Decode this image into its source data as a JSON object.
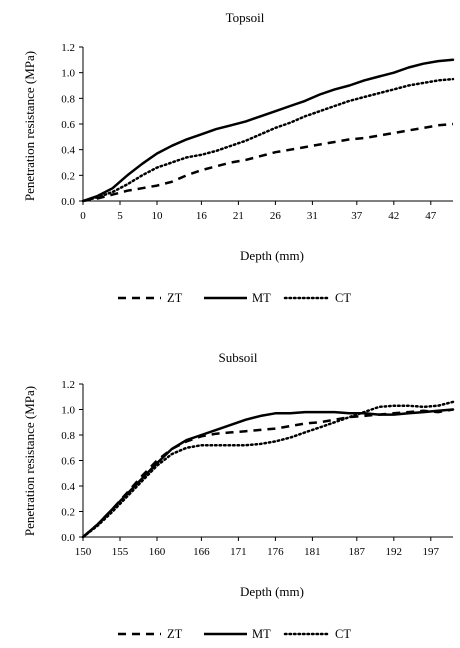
{
  "chart_data": [
    {
      "type": "line",
      "title": "Topsoil",
      "xlabel": "Depth (mm)",
      "ylabel": "Penetration resistance (MPa)",
      "xlim": [
        0,
        50
      ],
      "ylim": [
        0,
        1.2
      ],
      "x_ticks": [
        0,
        5,
        10,
        16,
        21,
        26,
        31,
        37,
        42,
        47
      ],
      "y_ticks": [
        "0.0",
        "0.2",
        "0.4",
        "0.6",
        "0.8",
        "1.0",
        "1.2"
      ],
      "grid": false,
      "legend_position": "bottom",
      "series": [
        {
          "name": "ZT",
          "style": "dashed",
          "x": [
            0,
            2,
            4,
            6,
            8,
            10,
            12,
            14,
            16,
            18,
            20,
            22,
            24,
            26,
            28,
            30,
            32,
            34,
            36,
            38,
            40,
            42,
            44,
            46,
            48,
            50
          ],
          "y": [
            0.0,
            0.02,
            0.05,
            0.08,
            0.1,
            0.12,
            0.15,
            0.2,
            0.24,
            0.27,
            0.3,
            0.32,
            0.35,
            0.38,
            0.4,
            0.42,
            0.44,
            0.46,
            0.48,
            0.49,
            0.51,
            0.53,
            0.55,
            0.57,
            0.59,
            0.6
          ]
        },
        {
          "name": "MT",
          "style": "solid",
          "x": [
            0,
            2,
            4,
            6,
            8,
            10,
            12,
            14,
            16,
            18,
            20,
            22,
            24,
            26,
            28,
            30,
            32,
            34,
            36,
            38,
            40,
            42,
            44,
            46,
            48,
            50
          ],
          "y": [
            0.0,
            0.04,
            0.1,
            0.2,
            0.29,
            0.37,
            0.43,
            0.48,
            0.52,
            0.56,
            0.59,
            0.62,
            0.66,
            0.7,
            0.74,
            0.78,
            0.83,
            0.87,
            0.9,
            0.94,
            0.97,
            1.0,
            1.04,
            1.07,
            1.09,
            1.1
          ]
        },
        {
          "name": "CT",
          "style": "dotted",
          "x": [
            0,
            2,
            4,
            6,
            8,
            10,
            12,
            14,
            16,
            18,
            20,
            22,
            24,
            26,
            28,
            30,
            32,
            34,
            36,
            38,
            40,
            42,
            44,
            46,
            48,
            50
          ],
          "y": [
            0.0,
            0.03,
            0.07,
            0.13,
            0.2,
            0.26,
            0.3,
            0.34,
            0.36,
            0.39,
            0.43,
            0.47,
            0.52,
            0.57,
            0.61,
            0.66,
            0.7,
            0.74,
            0.78,
            0.81,
            0.84,
            0.87,
            0.9,
            0.92,
            0.94,
            0.95
          ]
        }
      ]
    },
    {
      "type": "line",
      "title": "Subsoil",
      "xlabel": "Depth (mm)",
      "ylabel": "Penetration resistance (MPa)",
      "xlim": [
        150,
        200
      ],
      "ylim": [
        0,
        1.2
      ],
      "x_ticks": [
        150,
        155,
        160,
        166,
        171,
        176,
        181,
        187,
        192,
        197
      ],
      "y_ticks": [
        "0.0",
        "0.2",
        "0.4",
        "0.6",
        "0.8",
        "1.0",
        "1.2"
      ],
      "grid": false,
      "legend_position": "bottom",
      "series": [
        {
          "name": "ZT",
          "style": "dashed",
          "x": [
            150,
            152,
            154,
            156,
            158,
            160,
            162,
            164,
            166,
            168,
            170,
            172,
            174,
            176,
            178,
            180,
            182,
            184,
            186,
            188,
            190,
            192,
            194,
            196,
            198,
            200
          ],
          "y": [
            0.0,
            0.1,
            0.22,
            0.35,
            0.48,
            0.6,
            0.69,
            0.75,
            0.79,
            0.81,
            0.82,
            0.83,
            0.84,
            0.85,
            0.87,
            0.89,
            0.9,
            0.92,
            0.94,
            0.95,
            0.96,
            0.97,
            0.98,
            0.99,
            0.98,
            1.0
          ]
        },
        {
          "name": "MT",
          "style": "solid",
          "x": [
            150,
            152,
            154,
            156,
            158,
            160,
            162,
            164,
            166,
            168,
            170,
            172,
            174,
            176,
            178,
            180,
            182,
            184,
            186,
            188,
            190,
            192,
            194,
            196,
            198,
            200
          ],
          "y": [
            0.0,
            0.1,
            0.22,
            0.34,
            0.46,
            0.58,
            0.69,
            0.76,
            0.8,
            0.84,
            0.88,
            0.92,
            0.95,
            0.97,
            0.97,
            0.98,
            0.98,
            0.98,
            0.97,
            0.97,
            0.96,
            0.96,
            0.97,
            0.98,
            0.99,
            1.0
          ]
        },
        {
          "name": "CT",
          "style": "dotted",
          "x": [
            150,
            152,
            154,
            156,
            158,
            160,
            162,
            164,
            166,
            168,
            170,
            172,
            174,
            176,
            178,
            180,
            182,
            184,
            186,
            188,
            190,
            192,
            194,
            196,
            198,
            200
          ],
          "y": [
            0.0,
            0.09,
            0.2,
            0.32,
            0.44,
            0.56,
            0.65,
            0.7,
            0.72,
            0.72,
            0.72,
            0.72,
            0.73,
            0.75,
            0.78,
            0.82,
            0.86,
            0.9,
            0.94,
            0.98,
            1.02,
            1.03,
            1.03,
            1.02,
            1.03,
            1.06
          ]
        }
      ]
    }
  ]
}
